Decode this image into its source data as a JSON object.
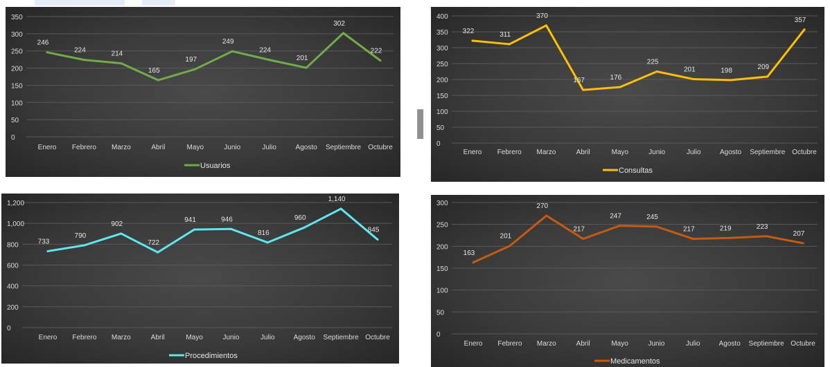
{
  "chart_data": [
    {
      "type": "line",
      "categories": [
        "Enero",
        "Febrero",
        "Marzo",
        "Abril",
        "Mayo",
        "Junio",
        "Julio",
        "Agosto",
        "Septiembre",
        "Octubre"
      ],
      "series": [
        {
          "name": "Usuarios",
          "values": [
            246,
            224,
            214,
            165,
            197,
            249,
            224,
            201,
            302,
            222
          ],
          "color": "#70ad47"
        }
      ],
      "yticks": [
        "0",
        "50",
        "100",
        "150",
        "200",
        "250",
        "300",
        "350"
      ],
      "ylim": [
        0,
        350
      ],
      "grid": true,
      "legend": "bottom"
    },
    {
      "type": "line",
      "categories": [
        "Enero",
        "Febrero",
        "Marzo",
        "Abril",
        "Mayo",
        "Junio",
        "Julio",
        "Agosto",
        "Septiembre",
        "Octubre"
      ],
      "series": [
        {
          "name": "Consultas",
          "values": [
            322,
            311,
            370,
            167,
            176,
            225,
            201,
            198,
            209,
            357
          ],
          "color": "#ffc000"
        }
      ],
      "yticks": [
        "0",
        "50",
        "100",
        "150",
        "200",
        "250",
        "300",
        "350",
        "400"
      ],
      "ylim": [
        0,
        400
      ],
      "grid": true,
      "legend": "bottom"
    },
    {
      "type": "line",
      "categories": [
        "Enero",
        "Febrero",
        "Marzo",
        "Abril",
        "Mayo",
        "Junio",
        "Julio",
        "Agosto",
        "Septiembre",
        "Octubre"
      ],
      "series": [
        {
          "name": "Procedimientos",
          "values": [
            733,
            790,
            902,
            722,
            941,
            946,
            816,
            960,
            1140,
            845
          ],
          "color": "#5ce8ee"
        }
      ],
      "value_labels": [
        "733",
        "790",
        "902",
        "722",
        "941",
        "946",
        "816",
        "960",
        "1,140",
        "845"
      ],
      "yticks": [
        "0",
        "200",
        "400",
        "600",
        "800",
        "1,000",
        "1,200"
      ],
      "ylim": [
        0,
        1200
      ],
      "grid": true,
      "legend": "bottom"
    },
    {
      "type": "line",
      "categories": [
        "Enero",
        "Febrero",
        "Marzo",
        "Abril",
        "Mayo",
        "Junio",
        "Julio",
        "Agosto",
        "Septiembre",
        "Octubre"
      ],
      "series": [
        {
          "name": "Medicamentos",
          "values": [
            163,
            201,
            270,
            217,
            247,
            245,
            217,
            219,
            223,
            207
          ],
          "color": "#c55a11"
        }
      ],
      "yticks": [
        "0",
        "50",
        "100",
        "150",
        "200",
        "250",
        "300"
      ],
      "ylim": [
        0,
        300
      ],
      "grid": true,
      "legend": "bottom"
    }
  ]
}
